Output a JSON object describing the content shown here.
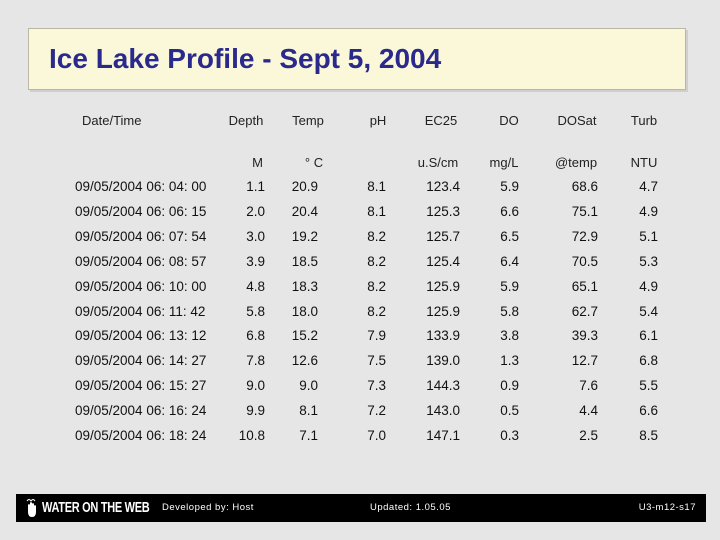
{
  "title": "Ice Lake Profile - Sept 5, 2004",
  "headers": [
    "Date/Time",
    "Depth",
    "Temp",
    "pH",
    "EC25",
    "DO",
    "DOSat",
    "Turb"
  ],
  "units": [
    "",
    "M",
    "° C",
    "",
    "u.S/cm",
    "mg/L",
    "@temp",
    "NTU"
  ],
  "rows": [
    [
      "09/05/2004 06: 04: 00",
      "1.1",
      "20.9",
      "8.1",
      "123.4",
      "5.9",
      "68.6",
      "4.7"
    ],
    [
      "09/05/2004 06: 06: 15",
      "2.0",
      "20.4",
      "8.1",
      "125.3",
      "6.6",
      "75.1",
      "4.9"
    ],
    [
      "09/05/2004 06: 07: 54",
      "3.0",
      "19.2",
      "8.2",
      "125.7",
      "6.5",
      "72.9",
      "5.1"
    ],
    [
      "09/05/2004 06: 08: 57",
      "3.9",
      "18.5",
      "8.2",
      "125.4",
      "6.4",
      "70.5",
      "5.3"
    ],
    [
      "09/05/2004 06: 10: 00",
      "4.8",
      "18.3",
      "8.2",
      "125.9",
      "5.9",
      "65.1",
      "4.9"
    ],
    [
      "09/05/2004 06: 11: 42",
      "5.8",
      "18.0",
      "8.2",
      "125.9",
      "5.8",
      "62.7",
      "5.4"
    ],
    [
      "09/05/2004 06: 13: 12",
      "6.8",
      "15.2",
      "7.9",
      "133.9",
      "3.8",
      "39.3",
      "6.1"
    ],
    [
      "09/05/2004 06: 14: 27",
      "7.8",
      "12.6",
      "7.5",
      "139.0",
      "1.3",
      "12.7",
      "6.8"
    ],
    [
      "09/05/2004 06: 15: 27",
      "9.0",
      "9.0",
      "7.3",
      "144.3",
      "0.9",
      "7.6",
      "5.5"
    ],
    [
      "09/05/2004 06: 16: 24",
      "9.9",
      "8.1",
      "7.2",
      "143.0",
      "0.5",
      "4.4",
      "6.6"
    ],
    [
      "09/05/2004 06: 18: 24",
      "10.8",
      "7.1",
      "7.0",
      "147.1",
      "0.3",
      "2.5",
      "8.5"
    ]
  ],
  "footer": {
    "logo": "WATER ON THE WEB",
    "developed_by": "Developed by: Host",
    "updated": "Updated: 1.05.05",
    "slide_id": "U3-m12-s17"
  }
}
